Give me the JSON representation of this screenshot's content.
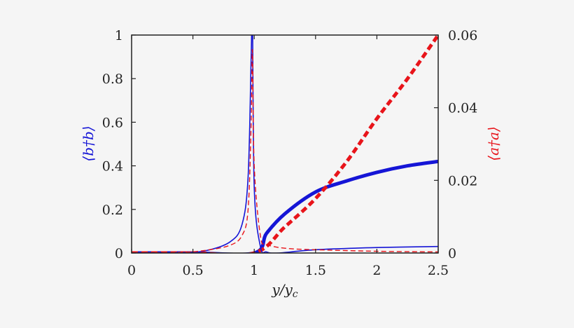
{
  "chart_data": {
    "type": "line",
    "title": "",
    "xlabel": "y/y_c",
    "ylabel_left": "⟨b†b⟩",
    "ylabel_right": "⟨a†a⟩",
    "xlim": [
      0,
      2.5
    ],
    "ylim_left": [
      0,
      1
    ],
    "ylim_right": [
      0,
      0.06
    ],
    "grid": false,
    "legend": null,
    "x_ticks": [
      "0",
      "0.5",
      "1",
      "1.5",
      "2",
      "2.5"
    ],
    "y_left_ticks": [
      "0",
      "0.2",
      "0.4",
      "0.6",
      "0.8",
      "1"
    ],
    "y_right_ticks": [
      "0",
      "0.02",
      "0.04",
      "0.06"
    ],
    "colors": {
      "blue": "#1515d6",
      "red": "#e8141a",
      "axis": "#222222"
    },
    "series": [
      {
        "name": "⟨b†b⟩ (thick solid)",
        "axis": "left",
        "style": "solid-thick",
        "color": "#1515d6",
        "x": [
          0,
          0.5,
          1.0,
          1.1,
          1.25,
          1.5,
          1.75,
          2.0,
          2.25,
          2.5
        ],
        "y": [
          0,
          0,
          0,
          0.09,
          0.18,
          0.28,
          0.33,
          0.37,
          0.4,
          0.42
        ]
      },
      {
        "name": "⟨a†a⟩ (thick dashed)",
        "axis": "right",
        "style": "dashed-thick",
        "color": "#e8141a",
        "x": [
          0,
          0.5,
          1.0,
          1.25,
          1.5,
          1.75,
          2.0,
          2.25,
          2.5
        ],
        "y": [
          0,
          0,
          0,
          0.0072,
          0.015,
          0.025,
          0.037,
          0.048,
          0.06
        ]
      },
      {
        "name": "⟨b†b⟩ (thin solid)",
        "axis": "left",
        "style": "solid-thin",
        "color": "#1515d6",
        "x": [
          0,
          0.4,
          0.6,
          0.8,
          0.9,
          0.95,
          0.975,
          0.985,
          1.0,
          1.05,
          1.1,
          1.2,
          1.5,
          2.0,
          2.5
        ],
        "y": [
          0,
          0.002,
          0.01,
          0.05,
          0.13,
          0.35,
          0.9,
          1.1,
          0.3,
          0.03,
          0.005,
          0.0,
          0.015,
          0.025,
          0.03
        ]
      },
      {
        "name": "⟨a†a⟩ (thin dashed)",
        "axis": "left",
        "style": "dashed-thin",
        "color": "#e8141a",
        "x": [
          0,
          0.4,
          0.6,
          0.8,
          0.9,
          0.95,
          0.975,
          0.985,
          1.0,
          1.05,
          1.1,
          1.25,
          1.5,
          2.0,
          2.5
        ],
        "y": [
          0,
          0.003,
          0.012,
          0.035,
          0.08,
          0.2,
          0.6,
          0.93,
          0.4,
          0.08,
          0.04,
          0.022,
          0.015,
          0.008,
          0.005
        ]
      }
    ]
  }
}
